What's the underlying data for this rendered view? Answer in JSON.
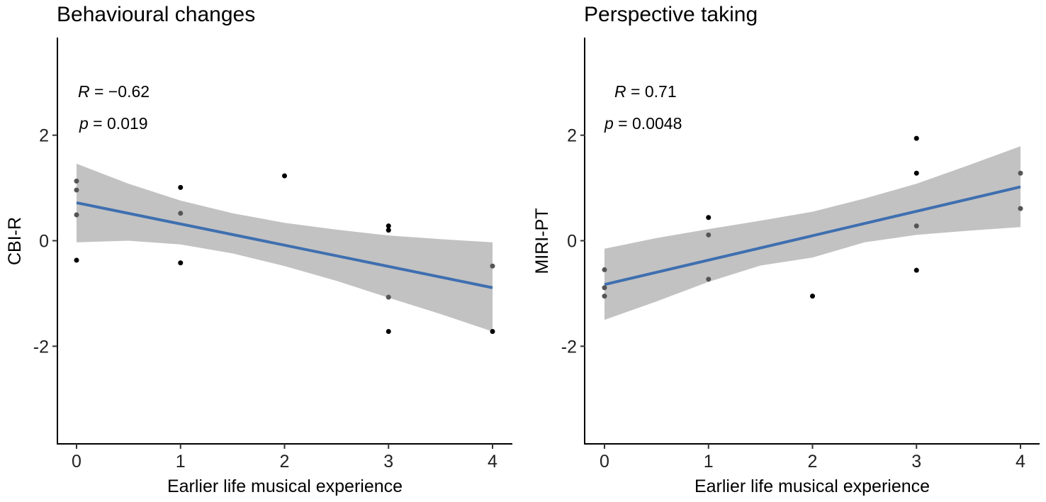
{
  "chart_data": [
    {
      "type": "scatter",
      "title": "Behavioural changes",
      "xlabel": "Earlier life musical experience",
      "ylabel": "CBI-R",
      "xlim": [
        -0.2,
        4.2
      ],
      "ylim": [
        -3.85,
        3.85
      ],
      "x_ticks": [
        0,
        1,
        2,
        3,
        4
      ],
      "y_ticks": [
        -2,
        0,
        2
      ],
      "grid": false,
      "stats": {
        "r_symbol": "R",
        "r_value": "−0.62",
        "p_symbol": "p",
        "p_value": "0.019"
      },
      "points": [
        {
          "x": 0,
          "y": 1.13
        },
        {
          "x": 0,
          "y": 0.96
        },
        {
          "x": 0,
          "y": 0.49
        },
        {
          "x": 0,
          "y": -0.37
        },
        {
          "x": 1,
          "y": 1.01
        },
        {
          "x": 1,
          "y": 0.52
        },
        {
          "x": 1,
          "y": -0.42
        },
        {
          "x": 2,
          "y": 1.23
        },
        {
          "x": 3,
          "y": 0.28
        },
        {
          "x": 3,
          "y": 0.2
        },
        {
          "x": 3,
          "y": -1.07
        },
        {
          "x": 3,
          "y": -1.72
        },
        {
          "x": 4,
          "y": -0.48
        },
        {
          "x": 4,
          "y": -1.72
        }
      ],
      "fit": {
        "x_start": 0,
        "x_end": 4,
        "y_start": 0.72,
        "y_end": -0.89
      },
      "band": {
        "x": [
          0,
          0.5,
          1,
          1.5,
          2,
          2.5,
          3,
          3.5,
          4
        ],
        "upper": [
          1.46,
          1.08,
          0.76,
          0.52,
          0.34,
          0.21,
          0.1,
          0.03,
          -0.03
        ],
        "lower": [
          -0.03,
          0.0,
          -0.07,
          -0.24,
          -0.48,
          -0.76,
          -1.08,
          -1.39,
          -1.72
        ]
      },
      "colors": {
        "line": "#3e6fb0",
        "band": "#c2c2c2",
        "point": "#000000"
      }
    },
    {
      "type": "scatter",
      "title": "Perspective taking",
      "xlabel": "Earlier life musical experience",
      "ylabel": "MIRI-PT",
      "xlim": [
        -0.2,
        4.2
      ],
      "ylim": [
        -3.85,
        3.85
      ],
      "x_ticks": [
        0,
        1,
        2,
        3,
        4
      ],
      "y_ticks": [
        -2,
        0,
        2
      ],
      "grid": false,
      "stats": {
        "r_symbol": "R",
        "r_value": "0.71",
        "p_symbol": "p",
        "p_value": "0.0048"
      },
      "points": [
        {
          "x": 0,
          "y": -0.55
        },
        {
          "x": 0,
          "y": -0.89
        },
        {
          "x": 0,
          "y": -1.05
        },
        {
          "x": 1,
          "y": 0.44
        },
        {
          "x": 1,
          "y": 0.11
        },
        {
          "x": 1,
          "y": -0.73
        },
        {
          "x": 2,
          "y": -1.05
        },
        {
          "x": 3,
          "y": 1.94
        },
        {
          "x": 3,
          "y": 1.28
        },
        {
          "x": 3,
          "y": 0.28
        },
        {
          "x": 3,
          "y": -0.56
        },
        {
          "x": 4,
          "y": 1.28
        },
        {
          "x": 4,
          "y": 0.61
        }
      ],
      "fit": {
        "x_start": 0,
        "x_end": 4,
        "y_start": -0.83,
        "y_end": 1.02
      },
      "band": {
        "x": [
          0,
          0.5,
          1,
          1.5,
          2,
          2.5,
          3,
          3.5,
          4
        ],
        "upper": [
          -0.15,
          0.05,
          0.22,
          0.38,
          0.55,
          0.8,
          1.08,
          1.43,
          1.79
        ],
        "lower": [
          -1.5,
          -1.15,
          -0.78,
          -0.47,
          -0.32,
          -0.03,
          0.11,
          0.19,
          0.26
        ]
      },
      "colors": {
        "line": "#3e6fb0",
        "band": "#c2c2c2",
        "point": "#000000"
      }
    }
  ]
}
